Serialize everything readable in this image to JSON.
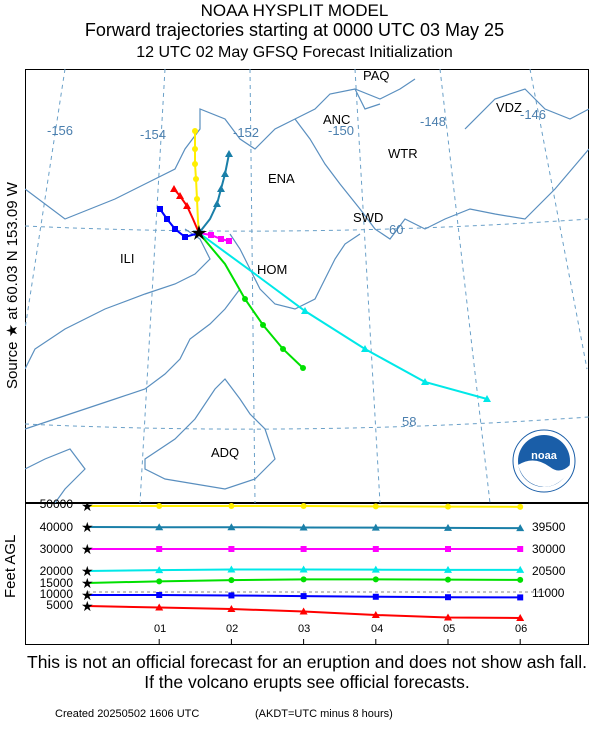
{
  "header": {
    "line1": "NOAA HYSPLIT MODEL",
    "line2": "Forward trajectories starting at 0000 UTC 03 May 25",
    "line3": "12 UTC 02 May    GFSQ  Forecast Initialization"
  },
  "side_labels": {
    "source": "Source ★  at   60.03 N  153.09 W",
    "alt_axis": "Feet AGL"
  },
  "map": {
    "lon_labels": [
      "-156",
      "-154",
      "-152",
      "-150",
      "-148",
      "-146"
    ],
    "lat_labels": [
      "60",
      "58"
    ],
    "places": [
      "PAQ",
      "ANC",
      "VDZ",
      "WTR",
      "ENA",
      "SWD",
      "ILI",
      "HOM",
      "ADQ"
    ],
    "logo_text": "noaa"
  },
  "altitude_panel": {
    "y_ticks": [
      "50000",
      "40000",
      "30000",
      "20000",
      "15000",
      "10000",
      "5000"
    ],
    "right_labels": [
      "39500",
      "30000",
      "20500",
      "11000"
    ],
    "x_ticks": [
      "01",
      "02",
      "03",
      "04",
      "05",
      "06"
    ]
  },
  "chart_data": {
    "type": "line",
    "x_unit": "hours",
    "x_ticks": [
      "01",
      "02",
      "03",
      "04",
      "05",
      "06"
    ],
    "ylabel": "Feet AGL",
    "series": [
      {
        "color": "#ffee00",
        "marker": "circle",
        "start_ft": 50000,
        "altitudes_ft": [
          50000,
          50000,
          50000,
          50000,
          49800,
          49700,
          49600
        ]
      },
      {
        "color": "#1a7fa8",
        "marker": "triangle",
        "start_ft": 40000,
        "altitudes_ft": [
          40000,
          39900,
          39900,
          39800,
          39700,
          39600,
          39500
        ]
      },
      {
        "color": "#ff00ff",
        "marker": "square",
        "start_ft": 30000,
        "altitudes_ft": [
          30000,
          30000,
          30000,
          30000,
          30000,
          30000,
          30000
        ]
      },
      {
        "color": "#00e8e8",
        "marker": "triangle",
        "start_ft": 20000,
        "altitudes_ft": [
          20000,
          20400,
          20700,
          20700,
          20600,
          20500,
          20500
        ]
      },
      {
        "color": "#00e000",
        "marker": "circle",
        "start_ft": 15000,
        "altitudes_ft": [
          15000,
          15700,
          16200,
          16500,
          16500,
          16400,
          16300
        ]
      },
      {
        "color": "#0000ff",
        "marker": "square",
        "start_ft": 10000,
        "altitudes_ft": [
          10000,
          10000,
          9800,
          9500,
          9200,
          9000,
          8900
        ]
      },
      {
        "color": "#ff0000",
        "marker": "triangle",
        "start_ft": 5000,
        "altitudes_ft": [
          5000,
          4700,
          4400,
          3900,
          3200,
          2700,
          2600
        ]
      }
    ]
  },
  "disclaimer": "This is not an official forecast for an eruption and does not show ash fall. If the volcano erupts see official forecasts.",
  "footer": {
    "created": "Created 20250502 1606 UTC",
    "note": "(AKDT=UTC minus 8 hours)"
  }
}
